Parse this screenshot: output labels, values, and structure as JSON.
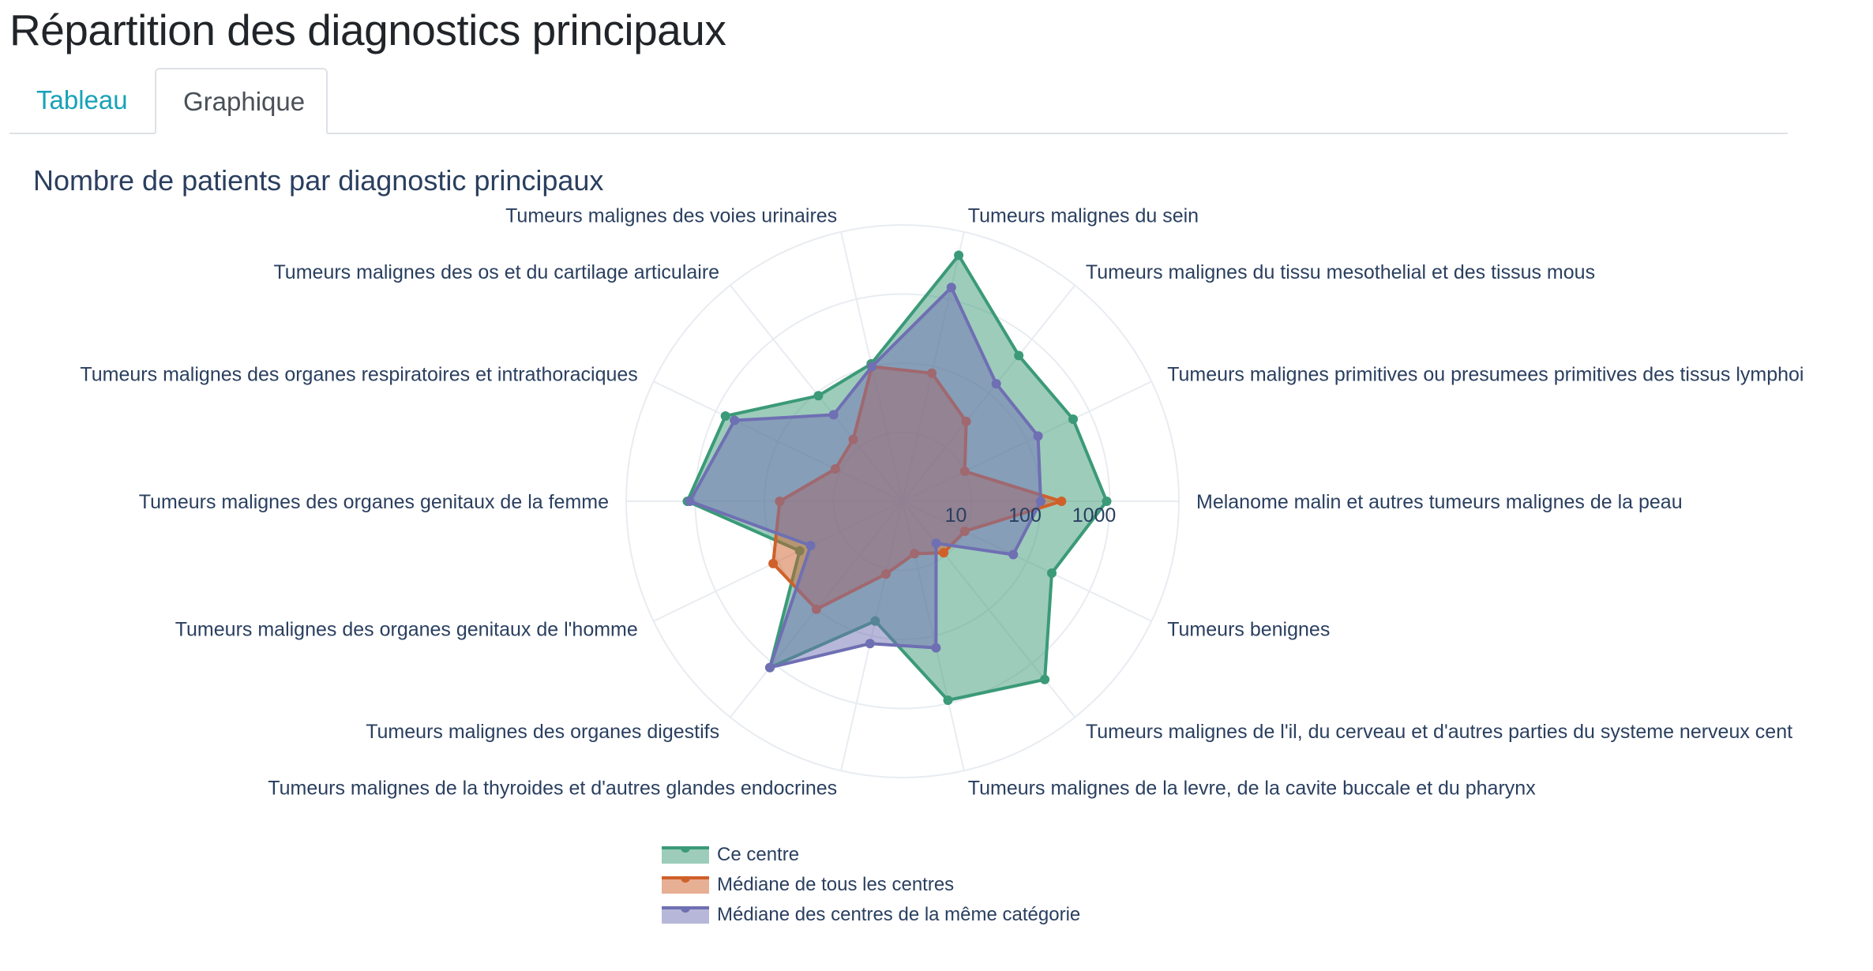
{
  "page": {
    "title": "Répartition des diagnostics principaux",
    "tabs": [
      {
        "label": "Tableau",
        "active": false
      },
      {
        "label": "Graphique",
        "active": true
      }
    ]
  },
  "colors": {
    "series": [
      "#3b9a78",
      "#d0602a",
      "#6f6fb3"
    ],
    "tab_link": "#17a2b8",
    "text": "#2a3f5f"
  },
  "chart_data": {
    "type": "radar",
    "title": "Nombre de patients par diagnostic principaux",
    "radial_axis": {
      "scale": "log",
      "range": [
        1,
        10000
      ],
      "tick_labels": [
        "10",
        "100",
        "1000"
      ],
      "tick_values": [
        10,
        100,
        1000
      ]
    },
    "categories": [
      "Melanome malin et autres tumeurs malignes de la peau",
      "Tumeurs benignes",
      "Tumeurs malignes de l'il, du cerveau et d'autres parties du systeme nerveux cent",
      "Tumeurs malignes de la levre, de la cavite buccale et du pharynx",
      "Tumeurs malignes de la thyroides et d'autres glandes endocrines",
      "Tumeurs malignes des organes digestifs",
      "Tumeurs malignes des organes genitaux de l'homme",
      "Tumeurs malignes des organes genitaux de la femme",
      "Tumeurs malignes des organes respiratoires et intrathoraciques",
      "Tumeurs malignes des os et du cartilage articulaire",
      "Tumeurs malignes des voies urinaires",
      "Tumeurs malignes du sein",
      "Tumeurs malignes du tissu mesothelial et des tissus mous",
      "Tumeurs malignes primitives ou presumees primitives des tissus lymphoi"
    ],
    "series": [
      {
        "name": "Ce centre",
        "values": [
          900,
          250,
          2000,
          900,
          60,
          1200,
          45,
          1300,
          700,
          90,
          110,
          4500,
          500,
          550
        ]
      },
      {
        "name": "Médiane de tous les centres",
        "values": [
          200,
          10,
          9,
          6,
          12,
          100,
          120,
          60,
          12,
          14,
          100,
          80,
          30,
          10
        ]
      },
      {
        "name": "Médiane des centres de la même catégorie",
        "values": [
          100,
          60,
          6,
          150,
          130,
          1200,
          30,
          1200,
          500,
          40,
          100,
          1500,
          150,
          150
        ]
      }
    ],
    "legend": {
      "placement": "bottom"
    },
    "grid": true
  }
}
